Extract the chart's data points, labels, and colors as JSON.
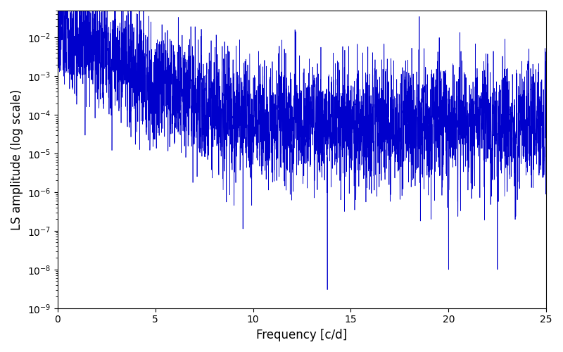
{
  "xlabel": "Frequency [c/d]",
  "ylabel": "LS amplitude (log scale)",
  "line_color": "#0000cc",
  "line_width": 0.5,
  "xlim": [
    0,
    25
  ],
  "ylim": [
    1e-09,
    0.05
  ],
  "background_color": "#ffffff",
  "figsize": [
    8.0,
    5.0
  ],
  "dpi": 100,
  "xticks": [
    0,
    5,
    10,
    15,
    20,
    25
  ],
  "n_points": 8000,
  "seed": 77
}
